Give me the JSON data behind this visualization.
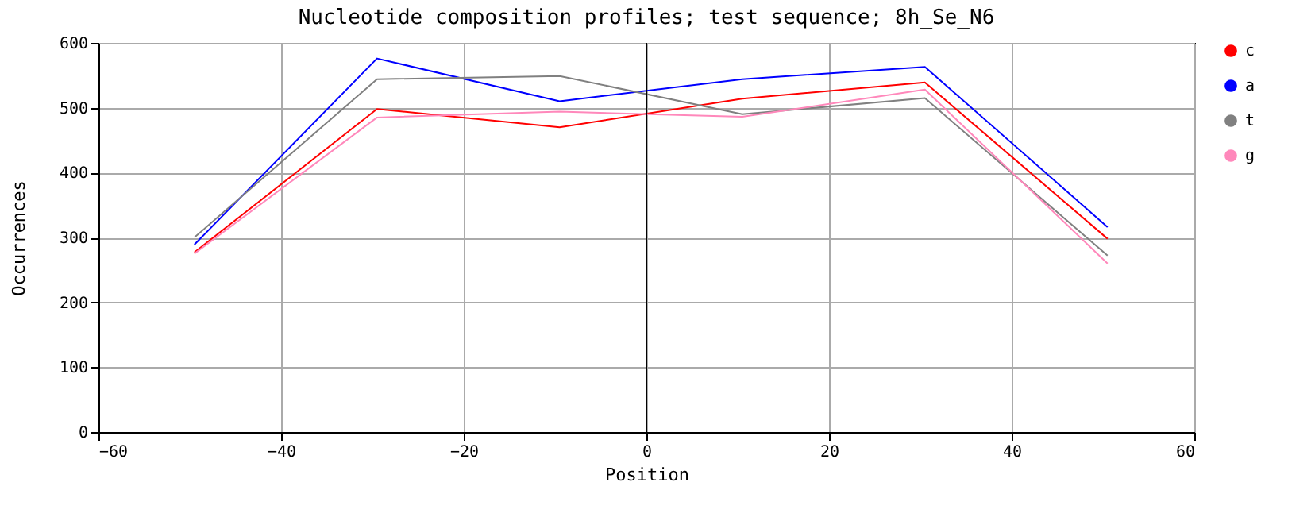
{
  "chart_data": {
    "type": "line",
    "title": "Nucleotide composition profiles; test sequence; 8h_Se_N6",
    "xlabel": "Position",
    "ylabel": "Occurrences",
    "x": [
      -49.5,
      -29.5,
      -9.5,
      10.5,
      30.5,
      50.5
    ],
    "series": [
      {
        "name": "c",
        "color": "#ff0000",
        "values": [
          277,
          498,
          470,
          514,
          539,
          298
        ]
      },
      {
        "name": "a",
        "color": "#0000ff",
        "values": [
          289,
          576,
          510,
          544,
          563,
          316
        ]
      },
      {
        "name": "t",
        "color": "#808080",
        "values": [
          300,
          544,
          549,
          490,
          515,
          272
        ]
      },
      {
        "name": "g",
        "color": "#ff88bb",
        "values": [
          275,
          485,
          494,
          486,
          528,
          260
        ]
      }
    ],
    "xlim": [
      -60,
      60
    ],
    "xticks": [
      -60,
      -40,
      -20,
      0,
      20,
      40,
      60
    ],
    "ylim": [
      0,
      600
    ],
    "yticks": [
      0,
      100,
      200,
      300,
      400,
      500,
      600
    ],
    "ref_lines": [
      {
        "axis": "x",
        "value": 0,
        "color": "#000000"
      }
    ],
    "grid": true,
    "legend": "top right",
    "marker": "none",
    "line_style": "solid"
  }
}
